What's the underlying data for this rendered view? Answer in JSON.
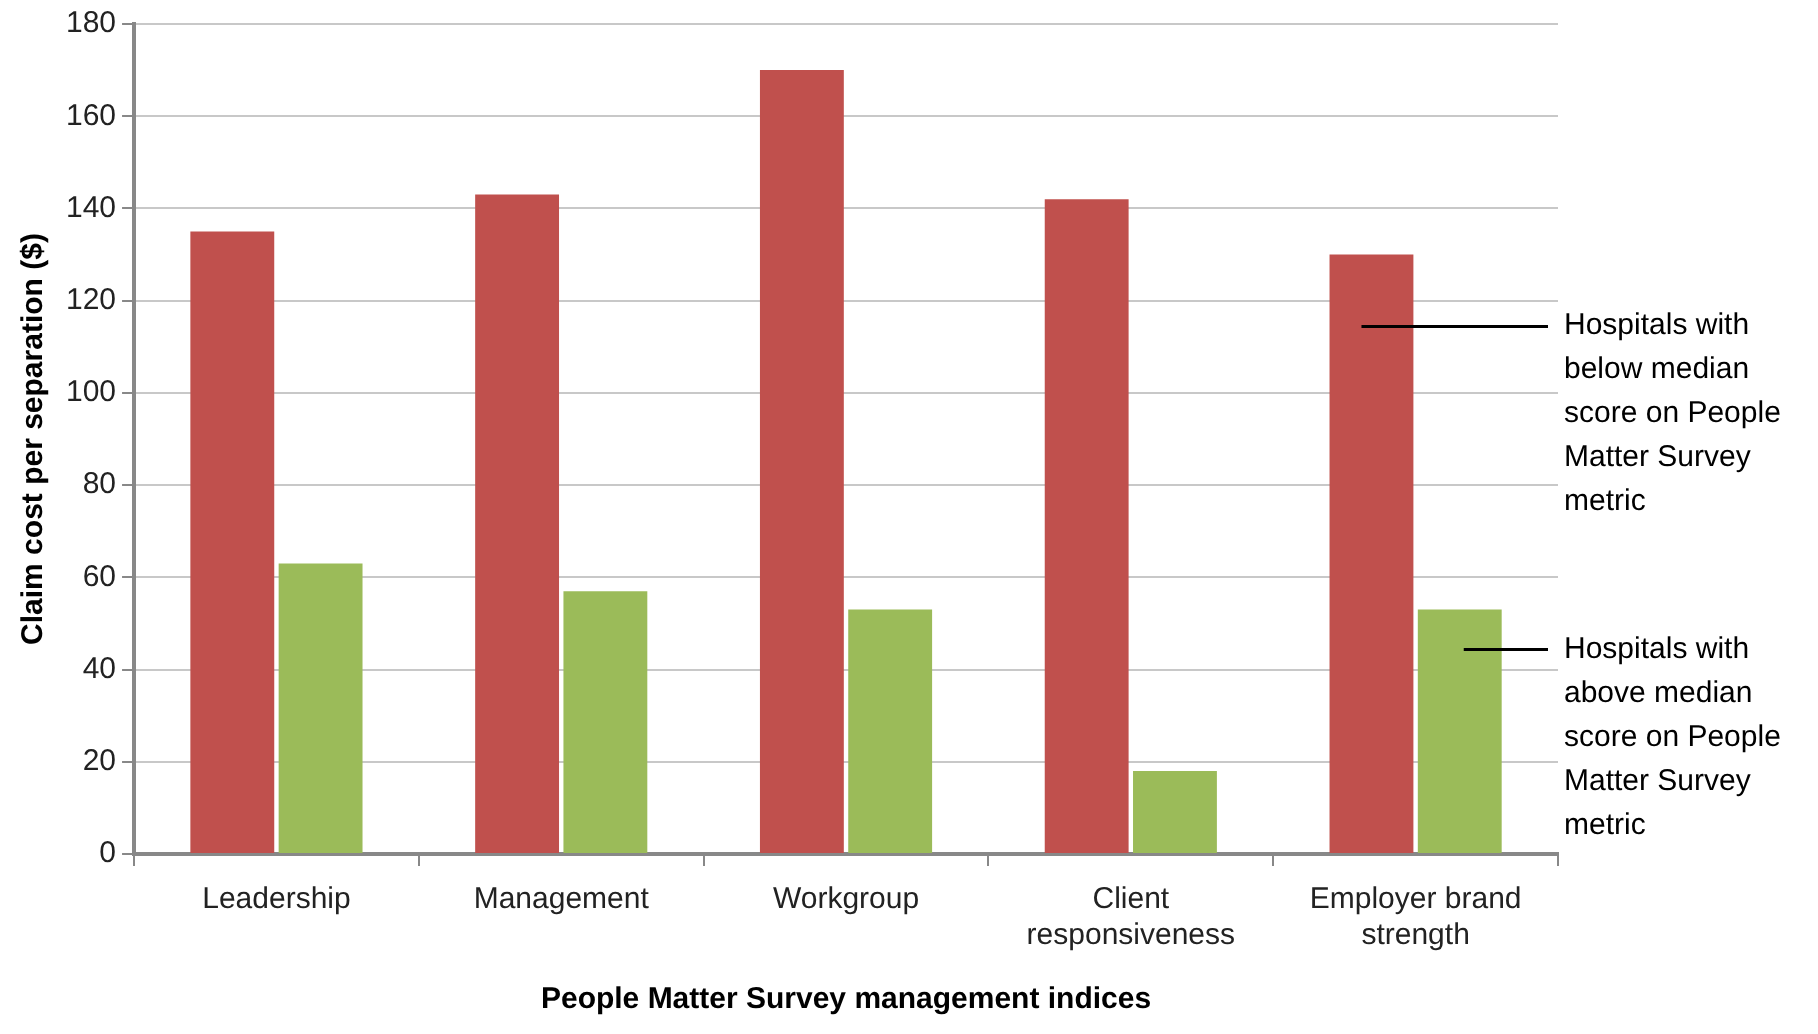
{
  "chart_data": {
    "type": "bar",
    "categories": [
      "Leadership",
      "Management",
      "Workgroup",
      "Client responsiveness",
      "Employer brand strength"
    ],
    "series": [
      {
        "name": "Hospitals with below median score on People Matter Survey metric",
        "color": "#c0504d",
        "values": [
          135,
          143,
          170,
          142,
          130
        ]
      },
      {
        "name": "Hospitals with above median score on People Matter Survey metric",
        "color": "#9bbb59",
        "values": [
          63,
          57,
          53,
          18,
          53
        ]
      }
    ],
    "xlabel": "People Matter Survey management indices",
    "ylabel": "Claim cost per separation ($)",
    "ylim": [
      0,
      180
    ],
    "yticks": [
      0,
      20,
      40,
      60,
      80,
      100,
      120,
      140,
      160,
      180
    ],
    "grid": "y"
  }
}
